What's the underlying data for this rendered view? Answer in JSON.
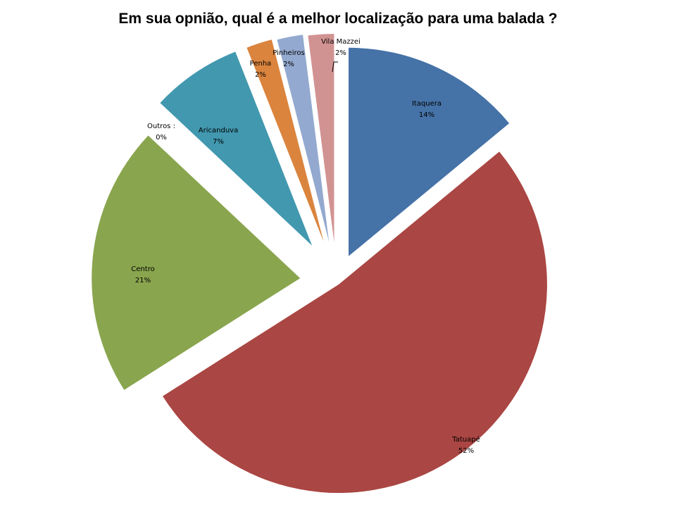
{
  "chart_data": {
    "type": "pie",
    "title": "Em sua opnião, qual é a melhor localização para uma balada ?",
    "slices": [
      {
        "label": "Itaquera",
        "value": 14,
        "percent_label": "14%",
        "color": "#4572a7"
      },
      {
        "label": "Tatuapé",
        "value": 52,
        "percent_label": "52%",
        "color": "#aa4643"
      },
      {
        "label": "Centro",
        "value": 21,
        "percent_label": "21%",
        "color": "#89a54e"
      },
      {
        "label": "Outros :",
        "value": 0,
        "percent_label": "0%",
        "color": "#71588f"
      },
      {
        "label": "Aricanduva",
        "value": 7,
        "percent_label": "7%",
        "color": "#4198af"
      },
      {
        "label": "Penha",
        "value": 2,
        "percent_label": "2%",
        "color": "#db843d"
      },
      {
        "label": "Pinheiros",
        "value": 2,
        "percent_label": "2%",
        "color": "#93a9cf"
      },
      {
        "label": "Vila Mazzei",
        "value": 2,
        "percent_label": "2%",
        "color": "#d19392"
      }
    ],
    "legend": "none"
  }
}
